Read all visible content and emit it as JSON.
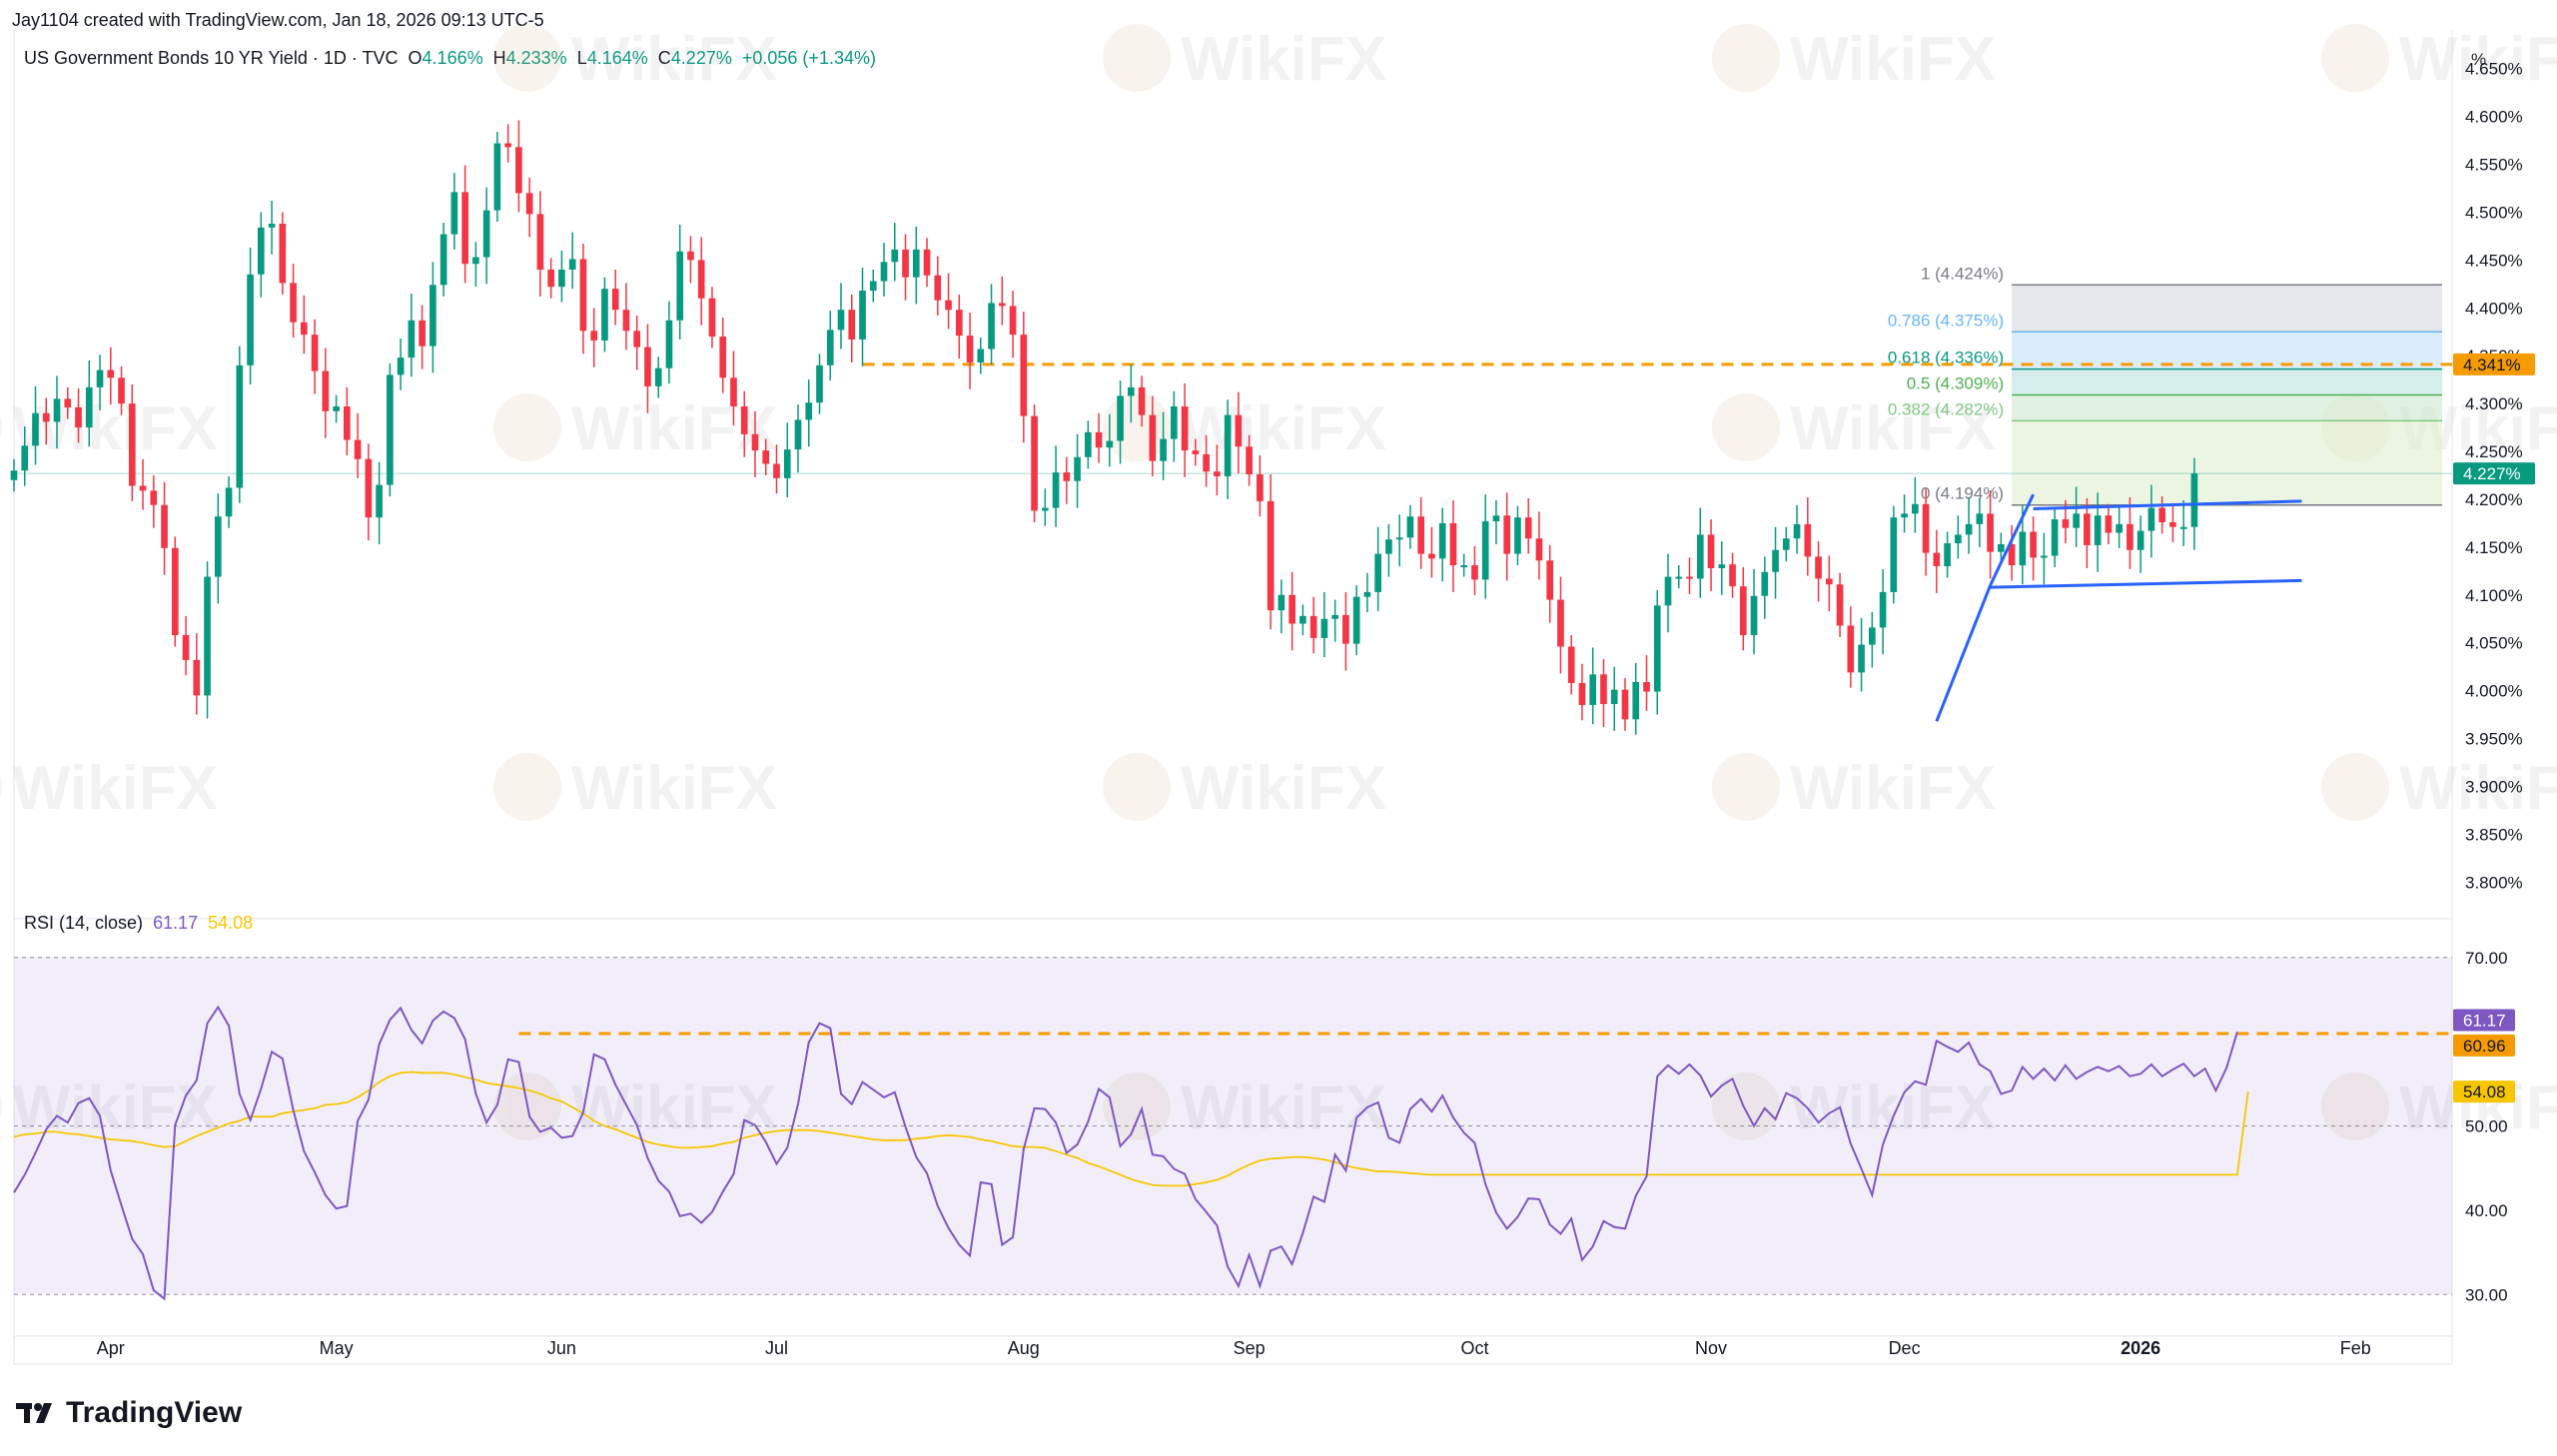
{
  "header": {
    "created_by": "Jay1104 created with TradingView.com, Jan 18, 2026 09:13 UTC-5",
    "symbol": "US Government Bonds 10 YR Yield · 1D · TVC",
    "o_label": "O",
    "o_value": "4.166%",
    "h_label": "H",
    "h_value": "4.233%",
    "l_label": "L",
    "l_value": "4.164%",
    "c_label": "C",
    "c_value": "4.227%",
    "change": "+0.056 (+1.34%)"
  },
  "axis_unit": "%",
  "brand": "TradingView",
  "watermark": "WikiFX",
  "colors": {
    "up": "#089981",
    "down": "#f23645",
    "rsi": "#7e57c2",
    "rsi_ma": "#f7c600",
    "level": "#f59b00",
    "trend": "#2962ff"
  },
  "chart_data": [
    {
      "type": "candlestick",
      "title": "US Government Bonds 10 YR Yield · 1D · TVC",
      "y_range": [
        3.77,
        4.68
      ],
      "y_ticks": [
        "4.650%",
        "4.600%",
        "4.550%",
        "4.500%",
        "4.450%",
        "4.400%",
        "4.350%",
        "4.300%",
        "4.250%",
        "4.200%",
        "4.150%",
        "4.100%",
        "4.050%",
        "4.000%",
        "3.950%",
        "3.900%",
        "3.850%",
        "3.800%"
      ],
      "x_ticks": [
        {
          "label": "Apr",
          "i": 10
        },
        {
          "label": "May",
          "i": 31
        },
        {
          "label": "Jun",
          "i": 52
        },
        {
          "label": "Jul",
          "i": 72
        },
        {
          "label": "Aug",
          "i": 95
        },
        {
          "label": "Sep",
          "i": 116
        },
        {
          "label": "Oct",
          "i": 137
        },
        {
          "label": "Nov",
          "i": 159
        },
        {
          "label": "Dec",
          "i": 177
        },
        {
          "label": "2026",
          "i": 199
        },
        {
          "label": "Feb",
          "i": 219
        }
      ],
      "x_range": [
        1,
        228
      ],
      "closes": [
        4.23,
        4.256,
        4.29,
        4.281,
        4.305,
        4.296,
        4.275,
        4.317,
        4.335,
        4.327,
        4.3,
        4.214,
        4.209,
        4.194,
        4.149,
        4.058,
        4.032,
        3.995,
        4.119,
        4.182,
        4.212,
        4.34,
        4.435,
        4.484,
        4.488,
        4.426,
        4.385,
        4.372,
        4.334,
        4.292,
        4.297,
        4.262,
        4.242,
        4.181,
        4.215,
        4.33,
        4.348,
        4.387,
        4.36,
        4.424,
        4.477,
        4.521,
        4.446,
        4.453,
        4.502,
        4.572,
        4.568,
        4.52,
        4.498,
        4.44,
        4.422,
        4.44,
        4.451,
        4.376,
        4.366,
        4.42,
        4.398,
        4.376,
        4.359,
        4.318,
        4.337,
        4.387,
        4.459,
        4.45,
        4.41,
        4.37,
        4.327,
        4.297,
        4.268,
        4.251,
        4.237,
        4.222,
        4.252,
        4.283,
        4.301,
        4.34,
        4.377,
        4.398,
        4.367,
        4.418,
        4.428,
        4.448,
        4.461,
        4.432,
        4.461,
        4.434,
        4.408,
        4.398,
        4.371,
        4.343,
        4.357,
        4.405,
        4.402,
        4.372,
        4.287,
        4.188,
        4.191,
        4.228,
        4.219,
        4.244,
        4.27,
        4.254,
        4.261,
        4.308,
        4.317,
        4.288,
        4.24,
        4.263,
        4.297,
        4.251,
        4.247,
        4.229,
        4.224,
        4.288,
        4.255,
        4.226,
        4.198,
        4.084,
        4.1,
        4.07,
        4.078,
        4.055,
        4.075,
        4.079,
        4.049,
        4.098,
        4.103,
        4.143,
        4.158,
        4.16,
        4.182,
        4.143,
        4.138,
        4.175,
        4.131,
        4.131,
        4.116,
        4.177,
        4.183,
        4.143,
        4.181,
        4.159,
        4.136,
        4.095,
        4.046,
        4.008,
        3.985,
        4.017,
        3.986,
        4.001,
        3.97,
        4.009,
        3.999,
        4.089,
        4.119,
        4.119,
        4.117,
        4.163,
        4.128,
        4.132,
        4.109,
        4.058,
        4.099,
        4.124,
        4.147,
        4.159,
        4.174,
        4.14,
        4.117,
        4.111,
        4.068,
        4.019,
        4.048,
        4.066,
        4.103,
        4.181,
        4.185,
        4.195,
        4.144,
        4.13,
        4.154,
        4.163,
        4.174,
        4.185,
        4.145,
        4.153,
        4.131,
        4.166,
        4.139,
        4.141,
        4.179,
        4.17,
        4.185,
        4.152,
        4.183,
        4.165,
        4.174,
        4.147,
        4.167,
        4.191,
        4.176,
        4.171,
        4.171,
        4.227
      ],
      "levels": [
        {
          "label": "1 (4.424%)",
          "value": 4.424,
          "color": "#787b86"
        },
        {
          "label": "0.786 (4.375%)",
          "value": 4.375,
          "color": "#64b5f6"
        },
        {
          "label": "0.618 (4.336%)",
          "value": 4.336,
          "color": "#089981"
        },
        {
          "label": "0.5 (4.309%)",
          "value": 4.309,
          "color": "#4caf50"
        },
        {
          "label": "0.382 (4.282%)",
          "value": 4.282,
          "color": "#81c784"
        },
        {
          "label": "0 (4.194%)",
          "value": 4.194,
          "color": "#787b86"
        }
      ],
      "resistance": {
        "value": 4.341,
        "label": "4.341%"
      },
      "last": {
        "value": 4.227,
        "label": "4.227%"
      },
      "trendlines": [
        {
          "x1": 180,
          "y1": 3.968,
          "x2": 185,
          "y2": 4.11
        },
        {
          "x1": 185,
          "y1": 4.11,
          "x2": 189,
          "y2": 4.205
        },
        {
          "x1": 189,
          "y1": 4.19,
          "x2": 214,
          "y2": 4.198
        },
        {
          "x1": 185,
          "y1": 4.108,
          "x2": 214,
          "y2": 4.115
        }
      ]
    },
    {
      "type": "line",
      "title": "RSI (14, close)",
      "legend_rsi": "61.17",
      "legend_ma": "54.08",
      "y_range": [
        26,
        74
      ],
      "y_ticks": [
        "70.00",
        "60.00",
        "50.00",
        "40.00",
        "30.00"
      ],
      "band": [
        30,
        70
      ],
      "midline": 50,
      "series": [
        {
          "name": "RSI",
          "values": [
            42.1,
            44.2,
            46.8,
            49.6,
            51.2,
            50.4,
            52.7,
            53.3,
            51.2,
            44.7,
            40.6,
            36.6,
            34.8,
            30.5,
            29.5,
            50.1,
            53.6,
            55.4,
            62.2,
            64.1,
            61.9,
            53.8,
            50.7,
            54.4,
            58.8,
            58.0,
            51.9,
            47.0,
            44.5,
            41.8,
            40.2,
            40.5,
            50.6,
            53.1,
            59.7,
            62.6,
            64.0,
            61.4,
            59.8,
            62.5,
            63.6,
            62.8,
            60.3,
            53.8,
            50.4,
            52.5,
            57.9,
            57.6,
            51.1,
            49.3,
            49.8,
            48.6,
            48.8,
            51.6,
            58.5,
            57.9,
            54.9,
            52.5,
            50.1,
            46.2,
            43.5,
            42.2,
            39.3,
            39.6,
            38.5,
            39.8,
            42.2,
            44.3,
            50.7,
            50.1,
            48.1,
            45.5,
            47.4,
            52.6,
            59.9,
            62.2,
            61.6,
            53.8,
            52.6,
            55.2,
            54.3,
            53.4,
            54.0,
            49.9,
            46.3,
            44.4,
            40.5,
            37.9,
            35.9,
            34.6,
            43.3,
            43.1,
            35.9,
            36.8,
            47.2,
            52.1,
            52.0,
            50.4,
            46.8,
            47.8,
            50.5,
            54.4,
            53.4,
            47.6,
            49.0,
            52.0,
            46.6,
            46.4,
            44.9,
            44.3,
            41.3,
            39.8,
            38.2,
            33.3,
            31.0,
            34.7,
            31.0,
            35.2,
            35.7,
            33.6,
            37.3,
            41.6,
            41.0,
            46.6,
            44.7,
            51.0,
            52.2,
            52.8,
            48.6,
            48.0,
            52.0,
            53.2,
            51.7,
            53.6,
            51.0,
            49.2,
            48.0,
            43.1,
            39.7,
            37.8,
            39.2,
            41.4,
            41.3,
            38.3,
            37.2,
            39.0,
            34.1,
            35.7,
            38.7,
            38.0,
            37.8,
            41.7,
            44.0,
            55.9,
            57.2,
            56.2,
            57.3,
            56.0,
            53.5,
            54.8,
            55.6,
            52.4,
            50.0,
            52.1,
            50.8,
            53.9,
            53.3,
            52.1,
            50.4,
            51.5,
            52.2,
            47.9,
            44.9,
            41.8,
            47.8,
            51.2,
            54.0,
            55.3,
            54.9,
            60.1,
            59.4,
            58.8,
            59.9,
            57.3,
            56.5,
            53.8,
            54.2,
            57.0,
            55.6,
            56.8,
            55.4,
            57.2,
            55.6,
            56.4,
            57.0,
            56.5,
            57.1,
            55.9,
            56.2,
            57.3,
            55.9,
            56.7,
            57.4,
            55.9,
            56.8,
            54.2,
            56.9,
            61.17
          ]
        },
        {
          "name": "RSI MA",
          "values": [
            48.7,
            49.0,
            49.1,
            49.3,
            49.3,
            49.1,
            49.0,
            48.8,
            48.6,
            48.4,
            48.3,
            48.2,
            48.0,
            47.7,
            47.5,
            47.6,
            48.2,
            48.8,
            49.3,
            49.8,
            50.3,
            50.6,
            51.1,
            51.1,
            51.1,
            51.5,
            51.7,
            51.9,
            52.1,
            52.5,
            52.6,
            52.8,
            53.4,
            54.2,
            55.2,
            55.9,
            56.3,
            56.4,
            56.3,
            56.3,
            56.3,
            56.1,
            55.8,
            55.5,
            55.1,
            54.9,
            54.7,
            54.5,
            54.2,
            53.8,
            53.3,
            52.9,
            52.2,
            51.5,
            50.6,
            50.0,
            49.6,
            49.1,
            48.6,
            48.1,
            47.8,
            47.6,
            47.4,
            47.4,
            47.5,
            47.6,
            47.9,
            48.1,
            48.6,
            48.9,
            49.2,
            49.4,
            49.5,
            49.5,
            49.5,
            49.4,
            49.2,
            49.0,
            48.8,
            48.6,
            48.4,
            48.3,
            48.3,
            48.3,
            48.5,
            48.6,
            48.8,
            48.9,
            48.8,
            48.7,
            48.4,
            48.2,
            47.9,
            47.6,
            47.5,
            47.5,
            47.4,
            47.0,
            46.6,
            46.2,
            45.6,
            45.2,
            44.7,
            44.2,
            43.7,
            43.3,
            43.0,
            42.9,
            42.9,
            42.9,
            43.1,
            43.3,
            43.6,
            44.1,
            44.8,
            45.4,
            45.9,
            46.1,
            46.2,
            46.3,
            46.3,
            46.2,
            46.0,
            45.7,
            45.3,
            45.0,
            44.8,
            44.6,
            44.6,
            44.5,
            44.4,
            44.3,
            44.2,
            44.2,
            44.2,
            44.2,
            44.2,
            44.2,
            44.2,
            44.2,
            44.2,
            44.2,
            44.2,
            44.2,
            44.2,
            44.2,
            44.2,
            44.2,
            44.2,
            44.2,
            44.2,
            44.2,
            44.2,
            44.2,
            44.2,
            44.2,
            44.2,
            44.2,
            44.2,
            44.2,
            44.2,
            44.2,
            44.2,
            44.2,
            44.2,
            44.2,
            44.2,
            44.2,
            44.2,
            44.2,
            44.2,
            44.2,
            44.2,
            44.2,
            44.2,
            44.2,
            44.2,
            44.2,
            44.2,
            44.2,
            44.2,
            44.2,
            44.2,
            44.2,
            44.2,
            44.2,
            44.2,
            44.2,
            44.2,
            44.2,
            44.2,
            44.2,
            44.2,
            44.2,
            44.2,
            44.2,
            44.2,
            44.2,
            44.2,
            44.2,
            44.2,
            44.2,
            44.2,
            44.2,
            44.2,
            44.2,
            44.2,
            44.2,
            54.08
          ]
        }
      ],
      "resistance": {
        "label": "60.96",
        "value": 60.96
      },
      "last_rsi": {
        "label": "61.17",
        "value": 61.17
      },
      "last_ma": {
        "label": "54.08",
        "value": 54.08
      }
    }
  ]
}
